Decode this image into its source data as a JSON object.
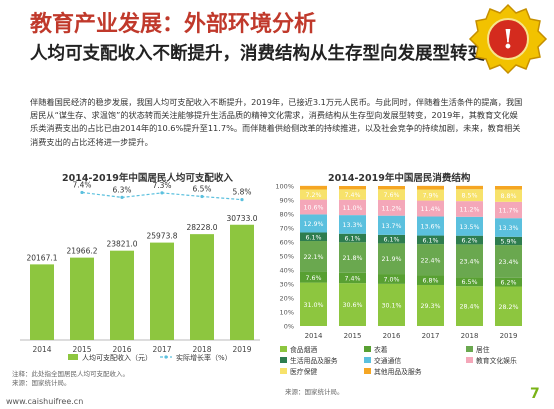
{
  "title": "教育产业发展：外部环境分析",
  "subtitle": "人均可支配收入不断提升，消费结构从生存型向发展型转变",
  "body": "伴随着国民经济的稳步发展，我国人均可支配收入不断提升，2019年，已接近3.1万元人民币。与此同时，伴随着生活条件的提高，我国居民从“谋生存、求温饱”的状态转而关注能够提升生活品质的精神文化需求，消费结构从生存型向发展型转变，2019年，其教育文化娱乐类消费支出的占比已由2014年的10.6%提升至11.7%。而伴随着供给侧改革的持续推进，以及社会竞争的持续加剧，未来，教育相关消费支出的占比还将进一步提升。",
  "logo_char": "!",
  "watermark": "www.caishuifree.cn",
  "page_number": "7",
  "colors": {
    "title": "#c0392b",
    "accent": "#7ab317",
    "income_bar": "#8dc63f",
    "growth_line": "#5bc0de"
  },
  "source_left": [
    "注释：此处指全国居民人均可支配收入。",
    "来源：国家统计局。"
  ],
  "source_right": "来源：国家统计局。",
  "chart_data": [
    {
      "type": "bar",
      "title": "2014-2019年中国居民人均可支配收入",
      "categories": [
        "2014",
        "2015",
        "2016",
        "2017",
        "2018",
        "2019"
      ],
      "series": [
        {
          "name": "人均可支配收入（元）",
          "values": [
            20167.1,
            21966.2,
            23821.0,
            25973.8,
            28228.0,
            30733.0
          ],
          "labels": [
            "20167.1",
            "21966.2",
            "23821.0",
            "25973.8",
            "28228.0",
            "30733.0"
          ]
        },
        {
          "name": "实际增长率（%）",
          "type": "line",
          "values": [
            null,
            7.4,
            6.3,
            7.3,
            6.5,
            5.8
          ],
          "labels": [
            "",
            "7.4%",
            "6.3%",
            "7.3%",
            "6.5%",
            "5.8%"
          ]
        }
      ],
      "ylim": [
        0,
        32000
      ]
    },
    {
      "type": "bar",
      "stacked": true,
      "title": "2014-2019年中国居民消费结构",
      "categories": [
        "2014",
        "2015",
        "2016",
        "2017",
        "2018",
        "2019"
      ],
      "yticks": [
        "0%",
        "10%",
        "20%",
        "30%",
        "40%",
        "50%",
        "60%",
        "70%",
        "80%",
        "90%",
        "100%"
      ],
      "ylim": [
        0,
        100
      ],
      "series": [
        {
          "name": "食品烟酒",
          "color": "#8dc63f",
          "values": [
            31.0,
            30.6,
            30.1,
            29.3,
            28.4,
            28.2
          ]
        },
        {
          "name": "衣着",
          "color": "#58a032",
          "values": [
            7.6,
            7.4,
            7.0,
            6.8,
            6.5,
            6.2
          ]
        },
        {
          "name": "居住",
          "color": "#6aa84f",
          "values": [
            22.1,
            21.8,
            21.9,
            22.4,
            23.4,
            23.4
          ]
        },
        {
          "name": "生活用品及服务",
          "color": "#2e7d4f",
          "values": [
            6.1,
            6.1,
            6.1,
            6.1,
            6.2,
            5.9
          ]
        },
        {
          "name": "交通通信",
          "color": "#5bc0de",
          "values": [
            12.9,
            13.3,
            13.7,
            13.6,
            13.5,
            13.3
          ]
        },
        {
          "name": "教育文化娱乐",
          "color": "#f4a7b9",
          "values": [
            10.6,
            11.0,
            11.2,
            11.4,
            11.2,
            11.7
          ]
        },
        {
          "name": "医疗保健",
          "color": "#f7e26b",
          "values": [
            7.2,
            7.4,
            7.6,
            7.9,
            8.5,
            8.8
          ]
        },
        {
          "name": "其他用品及服务",
          "color": "#f5a623",
          "values": [
            2.6,
            2.4,
            2.4,
            2.6,
            2.4,
            2.5
          ]
        }
      ],
      "labels": {
        "食品烟酒": [
          "31.0%",
          "30.6%",
          "30.1%",
          "29.3%",
          "28.4%",
          "28.2%"
        ],
        "衣着": [
          "7.6%",
          "7.4%",
          "7.0%",
          "6.8%",
          "6.5%",
          "6.2%"
        ],
        "居住": [
          "22.1%",
          "21.8%",
          "21.9%",
          "22.4%",
          "23.4%",
          "23.4%"
        ],
        "生活用品及服务": [
          "6.1%",
          "6.1%",
          "6.1%",
          "6.1%",
          "6.2%",
          "5.9%"
        ],
        "交通通信": [
          "12.9%",
          "13.3%",
          "13.7%",
          "13.6%",
          "13.5%",
          "13.3%"
        ],
        "教育文化娱乐": [
          "10.6%",
          "11.0%",
          "11.2%",
          "11.4%",
          "11.2%",
          "11.7%"
        ],
        "医疗保健": [
          "7.2%",
          "7.4%",
          "7.6%",
          "7.9%",
          "8.5%",
          "8.8%"
        ],
        "其他用品及服务": [
          "",
          "",
          "",
          "",
          "",
          ""
        ]
      },
      "legend": [
        "食品烟酒",
        "衣着",
        "居住",
        "生活用品及服务",
        "交通通信",
        "教育文化娱乐",
        "医疗保健",
        "其他用品及服务"
      ]
    }
  ]
}
